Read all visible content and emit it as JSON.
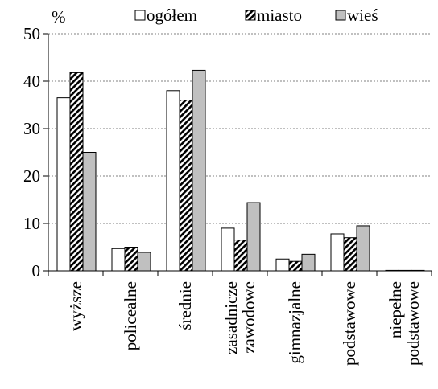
{
  "chart_data": {
    "type": "bar",
    "ylabel": "%",
    "ylim": [
      0,
      50
    ],
    "yticks": [
      0,
      10,
      20,
      30,
      40,
      50
    ],
    "grid": true,
    "legend_position": "top",
    "categories": [
      [
        "wyższe"
      ],
      [
        "policealne"
      ],
      [
        "średnie"
      ],
      [
        "zasadnicze",
        "zawodowe"
      ],
      [
        "gimnazjalne"
      ],
      [
        "podstawowe"
      ],
      [
        "niepełne",
        "podstawowe"
      ]
    ],
    "series": [
      {
        "name": "ogółem",
        "pattern": "white",
        "values": [
          36.5,
          4.7,
          38.0,
          9.0,
          2.5,
          7.8,
          0.1
        ]
      },
      {
        "name": "miasto",
        "pattern": "hatch",
        "values": [
          41.8,
          5.0,
          36.0,
          6.5,
          2.0,
          7.0,
          0.1
        ]
      },
      {
        "name": "wieś",
        "pattern": "gray",
        "values": [
          25.0,
          3.9,
          42.3,
          14.4,
          3.5,
          9.5,
          0.1
        ]
      }
    ],
    "colors": {
      "white": "#ffffff",
      "gray": "#c0c0c0",
      "stroke": "#000000",
      "grid": "#808080"
    }
  }
}
